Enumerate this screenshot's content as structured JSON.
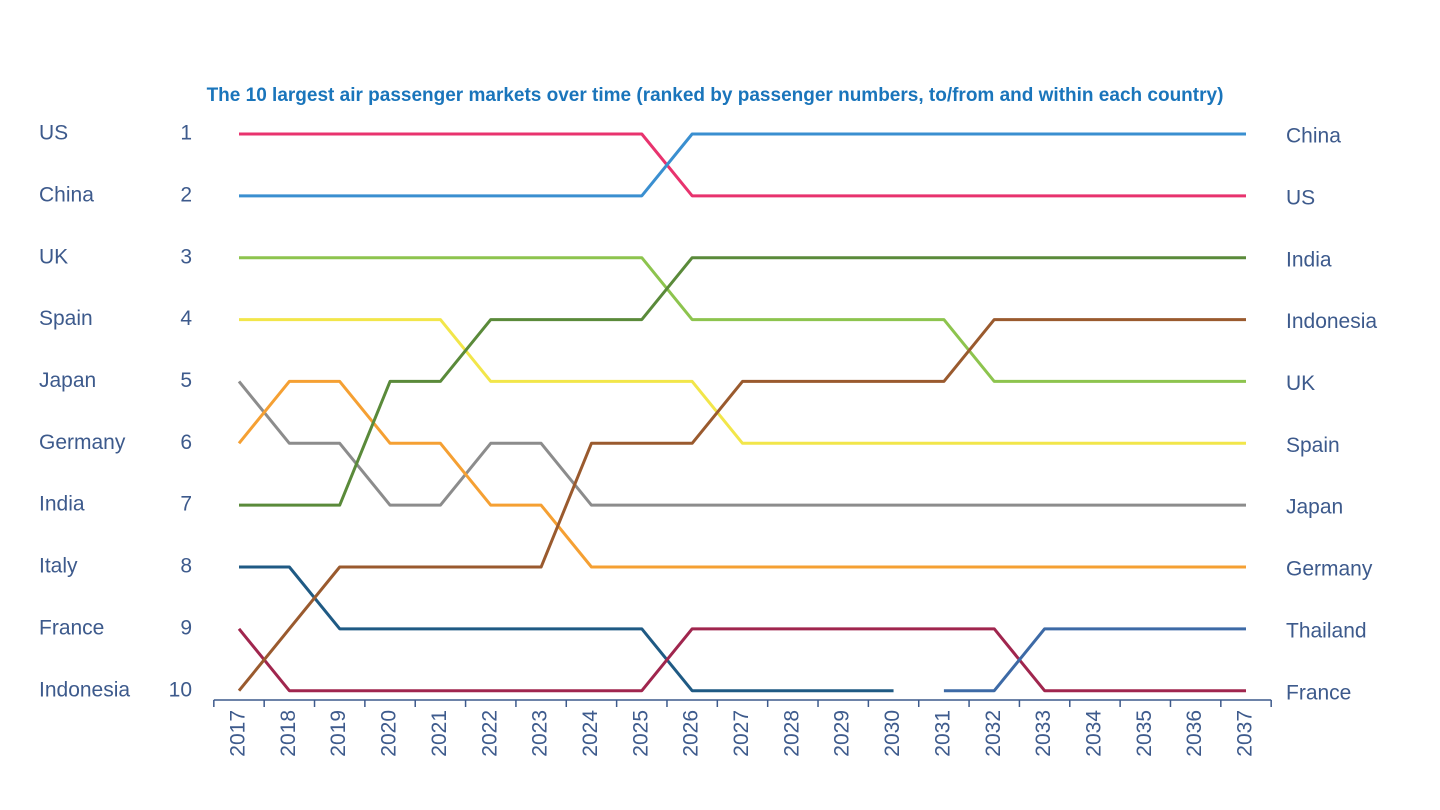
{
  "chart_data": {
    "type": "bump",
    "title": "The 10 largest air passenger markets over time (ranked by passenger numbers, to/from and within each country)",
    "categories": [
      "2017",
      "2018",
      "2019",
      "2020",
      "2021",
      "2022",
      "2023",
      "2024",
      "2025",
      "2026",
      "2027",
      "2028",
      "2029",
      "2030",
      "2031",
      "2032",
      "2033",
      "2034",
      "2035",
      "2036",
      "2037"
    ],
    "ylim": [
      10.15,
      1
    ],
    "yticks": [
      1,
      2,
      3,
      4,
      5,
      6,
      7,
      8,
      9,
      10
    ],
    "series": [
      {
        "name": "US",
        "color": "#e8336e",
        "values": [
          1,
          1,
          1,
          1,
          1,
          1,
          1,
          1,
          1,
          2,
          2,
          2,
          2,
          2,
          2,
          2,
          2,
          2,
          2,
          2,
          2
        ]
      },
      {
        "name": "China",
        "color": "#3a8fd0",
        "values": [
          2,
          2,
          2,
          2,
          2,
          2,
          2,
          2,
          2,
          1,
          1,
          1,
          1,
          1,
          1,
          1,
          1,
          1,
          1,
          1,
          1
        ]
      },
      {
        "name": "UK",
        "color": "#8dc44e",
        "values": [
          3,
          3,
          3,
          3,
          3,
          3,
          3,
          3,
          3,
          4,
          4,
          4,
          4,
          4,
          4,
          5,
          5,
          5,
          5,
          5,
          5
        ]
      },
      {
        "name": "Spain",
        "color": "#f2e64a",
        "values": [
          4,
          4,
          4,
          4,
          4,
          5,
          5,
          5,
          5,
          5,
          6,
          6,
          6,
          6,
          6,
          6,
          6,
          6,
          6,
          6,
          6
        ]
      },
      {
        "name": "Japan",
        "color": "#8c8c8c",
        "values": [
          5,
          6,
          6,
          7,
          7,
          6,
          6,
          7,
          7,
          7,
          7,
          7,
          7,
          7,
          7,
          7,
          7,
          7,
          7,
          7,
          7
        ]
      },
      {
        "name": "Germany",
        "color": "#f5a033",
        "values": [
          6,
          5,
          5,
          6,
          6,
          7,
          7,
          8,
          8,
          8,
          8,
          8,
          8,
          8,
          8,
          8,
          8,
          8,
          8,
          8,
          8
        ]
      },
      {
        "name": "India",
        "color": "#5a8a3a",
        "values": [
          7,
          7,
          7,
          5,
          5,
          4,
          4,
          4,
          4,
          3,
          3,
          3,
          3,
          3,
          3,
          3,
          3,
          3,
          3,
          3,
          3
        ]
      },
      {
        "name": "Italy",
        "color": "#1f5a84",
        "values": [
          8,
          8,
          9,
          9,
          9,
          9,
          9,
          9,
          9,
          10,
          10,
          10,
          10,
          10,
          null,
          null,
          null,
          null,
          null,
          null,
          null
        ]
      },
      {
        "name": "France",
        "color": "#a0264e",
        "values": [
          9,
          10,
          10,
          10,
          10,
          10,
          10,
          10,
          10,
          9,
          9,
          9,
          9,
          9,
          9,
          9,
          10,
          10,
          10,
          10,
          10
        ]
      },
      {
        "name": "Indonesia",
        "color": "#9a5a2e",
        "values": [
          10,
          9,
          8,
          8,
          8,
          8,
          8,
          6,
          6,
          6,
          5,
          5,
          5,
          5,
          5,
          4,
          4,
          4,
          4,
          4,
          4
        ]
      },
      {
        "name": "Thailand",
        "color": "#3d6aa6",
        "values": [
          null,
          null,
          null,
          null,
          null,
          null,
          null,
          null,
          null,
          null,
          null,
          null,
          null,
          null,
          10,
          10,
          9,
          9,
          9,
          9,
          9
        ]
      }
    ]
  }
}
